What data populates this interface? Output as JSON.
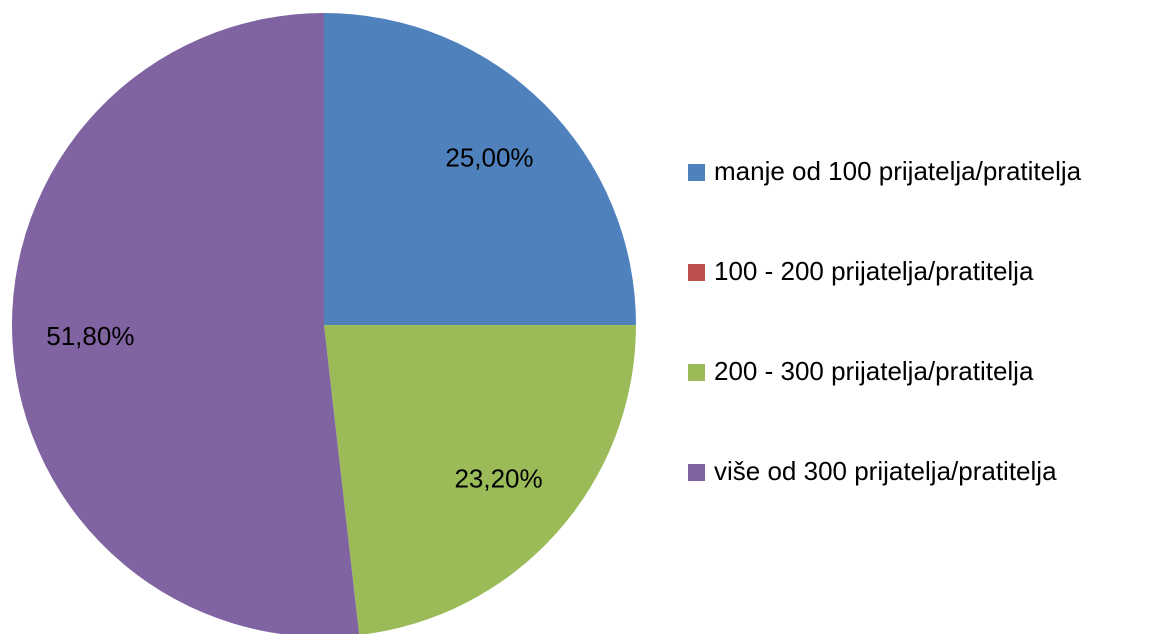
{
  "chart_data": {
    "type": "pie",
    "categories": [
      "manje od 100 prijatelja/pratitelja",
      "100 - 200 prijatelja/pratitelja",
      "200 - 300 prijatelja/pratitelja",
      "više od 300 prijatelja/pratitelja"
    ],
    "values": [
      25,
      0,
      23.2,
      51.8
    ],
    "value_labels": [
      "25,00%",
      null,
      "23,20%",
      "51,80%"
    ],
    "colors": [
      "#4f81bd",
      "#c0504d",
      "#9bbb59",
      "#8064a2"
    ],
    "legend": "right"
  }
}
